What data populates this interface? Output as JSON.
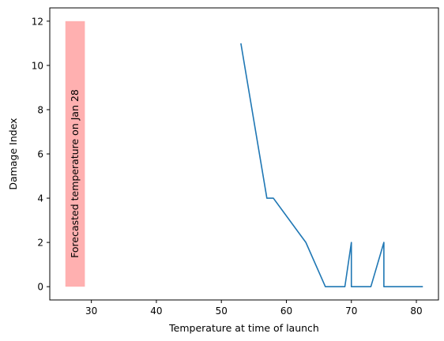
{
  "chart_data": {
    "type": "line",
    "xlabel": "Temperature at time of launch",
    "ylabel": "Damage Index",
    "xlim": [
      23.6,
      83.4
    ],
    "ylim": [
      -0.6,
      12.6
    ],
    "xticks": [
      30,
      40,
      50,
      60,
      70,
      80
    ],
    "yticks": [
      0,
      2,
      4,
      6,
      8,
      10,
      12
    ],
    "grid": false,
    "series": [
      {
        "color": "#1f77b4",
        "points": [
          [
            53,
            11
          ],
          [
            57,
            4
          ],
          [
            58,
            4
          ],
          [
            63,
            2
          ],
          [
            66,
            0
          ],
          [
            67,
            0
          ],
          [
            67,
            0
          ],
          [
            67,
            0
          ],
          [
            68,
            0
          ],
          [
            69,
            0
          ],
          [
            70,
            2
          ],
          [
            70,
            0
          ],
          [
            72,
            0
          ],
          [
            73,
            0
          ],
          [
            75,
            2
          ],
          [
            75,
            0
          ],
          [
            76,
            0
          ],
          [
            76,
            0
          ],
          [
            78,
            0
          ],
          [
            79,
            0
          ],
          [
            81,
            0
          ]
        ]
      }
    ],
    "highlight_band": {
      "x_range": [
        26,
        29
      ],
      "y_range": [
        0,
        12
      ],
      "color": "#ffb0b0",
      "label": "Forecasted temperature on Jan 28"
    }
  }
}
